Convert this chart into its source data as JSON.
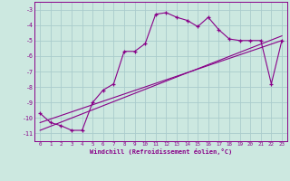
{
  "xlabel": "Windchill (Refroidissement éolien,°C)",
  "bg_color": "#cce8e0",
  "grid_color": "#aacccc",
  "line_color": "#880088",
  "xlim": [
    -0.5,
    23.5
  ],
  "ylim": [
    -11.5,
    -2.5
  ],
  "yticks": [
    -11,
    -10,
    -9,
    -8,
    -7,
    -6,
    -5,
    -4,
    -3
  ],
  "xticks": [
    0,
    1,
    2,
    3,
    4,
    5,
    6,
    7,
    8,
    9,
    10,
    11,
    12,
    13,
    14,
    15,
    16,
    17,
    18,
    19,
    20,
    21,
    22,
    23
  ],
  "series1_x": [
    0,
    1,
    2,
    3,
    4,
    5,
    6,
    7,
    8,
    9,
    10,
    11,
    12,
    13,
    14,
    15,
    16,
    17,
    18,
    19,
    20,
    21,
    22,
    23
  ],
  "series1_y": [
    -9.7,
    -10.3,
    -10.5,
    -10.8,
    -10.8,
    -9.0,
    -8.2,
    -7.8,
    -5.7,
    -5.7,
    -5.2,
    -3.3,
    -3.2,
    -3.5,
    -3.7,
    -4.1,
    -3.5,
    -4.3,
    -4.9,
    -5.0,
    -5.0,
    -5.0,
    -7.8,
    -5.0
  ],
  "line1_x": [
    0,
    23
  ],
  "line1_y": [
    -10.3,
    -5.0
  ],
  "line2_x": [
    0,
    23
  ],
  "line2_y": [
    -10.8,
    -4.7
  ]
}
